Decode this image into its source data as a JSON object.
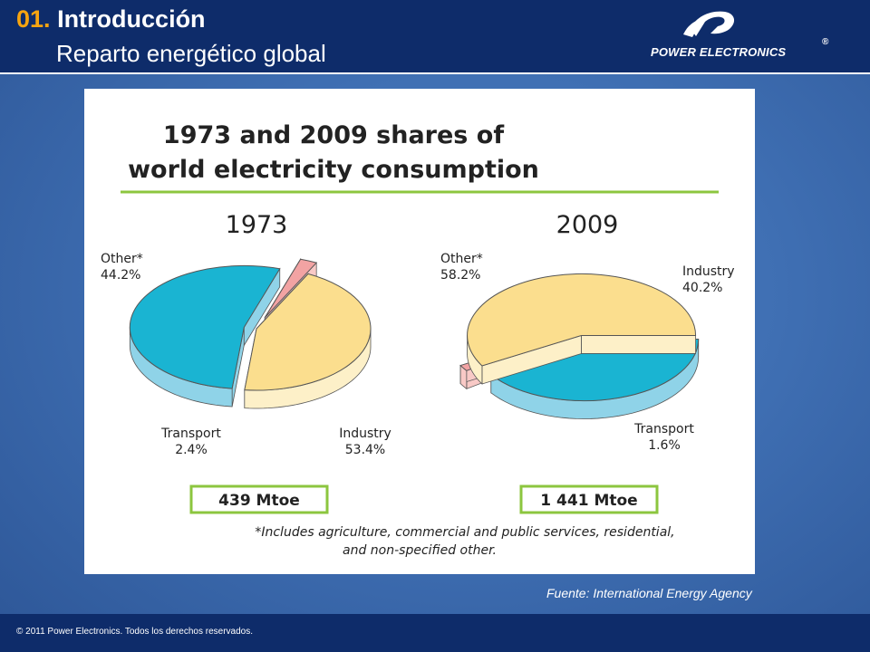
{
  "header": {
    "section_number": "01.",
    "section_title": "Introducción",
    "subtitle": "Reparto energético global"
  },
  "logo": {
    "name": "POWER ELECTRONICS",
    "registered_mark": "®"
  },
  "source_note": "Fuente: International Energy Agency",
  "footer": {
    "copyright": "© 2011 Power Electronics. Todos los derechos reservados."
  },
  "colors": {
    "industry": "#1ab4d2",
    "industry_side": "#8fd3e8",
    "transport": "#f2a3a3",
    "transport_side": "#f8c9c6",
    "other": "#fbde8e",
    "other_side": "#fdf0c8",
    "accent_line": "#8cc63f",
    "header_bg": "#0e2c6a",
    "title_number": "#f6a410"
  },
  "chart_data": {
    "type": "pie",
    "title_line1": "1973 and 2009 shares of",
    "title_line2": "world electricity consumption",
    "footnote_line1": "*Includes agriculture, commercial and public services, residential,",
    "footnote_line2": "and non-specified other.",
    "pies": [
      {
        "year": "1973",
        "total": "439 Mtoe",
        "slices": [
          {
            "label": "Industry",
            "value": 53.4,
            "value_label": "53.4%"
          },
          {
            "label": "Transport",
            "value": 2.4,
            "value_label": "2.4%"
          },
          {
            "label": "Other*",
            "value": 44.2,
            "value_label": "44.2%"
          }
        ]
      },
      {
        "year": "2009",
        "total": "1 441 Mtoe",
        "slices": [
          {
            "label": "Industry",
            "value": 40.2,
            "value_label": "40.2%"
          },
          {
            "label": "Transport",
            "value": 1.6,
            "value_label": "1.6%"
          },
          {
            "label": "Other*",
            "value": 58.2,
            "value_label": "58.2%"
          }
        ]
      }
    ]
  }
}
